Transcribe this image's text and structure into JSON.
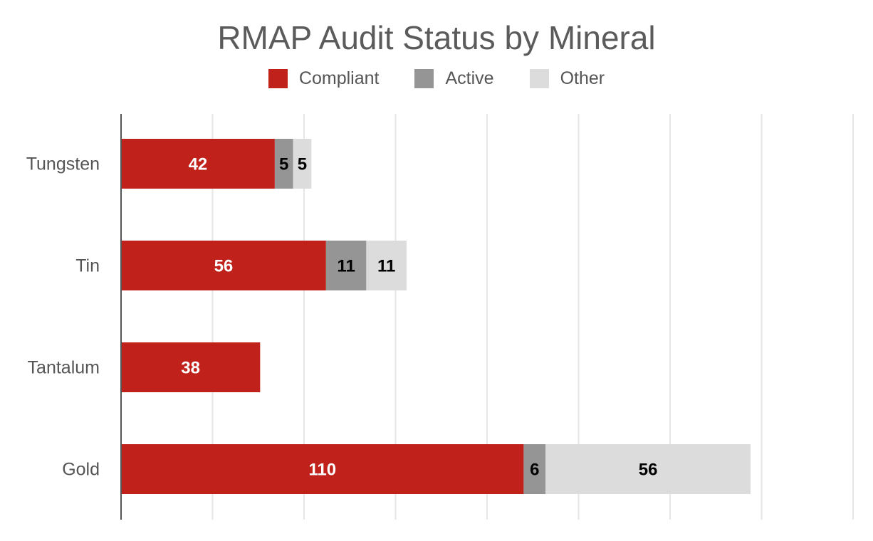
{
  "chart_data": {
    "type": "bar",
    "orientation": "horizontal",
    "stacked": true,
    "title": "RMAP Audit Status by Mineral",
    "categories": [
      "Tungsten",
      "Tin",
      "Tantalum",
      "Gold"
    ],
    "series": [
      {
        "name": "Compliant",
        "color": "#c0211a",
        "label_color": "#ffffff",
        "values": [
          42,
          56,
          38,
          110
        ]
      },
      {
        "name": "Active",
        "color": "#959595",
        "label_color": "#000000",
        "values": [
          5,
          11,
          0,
          6
        ]
      },
      {
        "name": "Other",
        "color": "#dcdcdc",
        "label_color": "#000000",
        "values": [
          5,
          11,
          0,
          56
        ]
      }
    ],
    "xlim": [
      0,
      200
    ],
    "x_gridline_step": 25,
    "grid": true,
    "legend_position": "top",
    "xlabel": "",
    "ylabel": ""
  }
}
